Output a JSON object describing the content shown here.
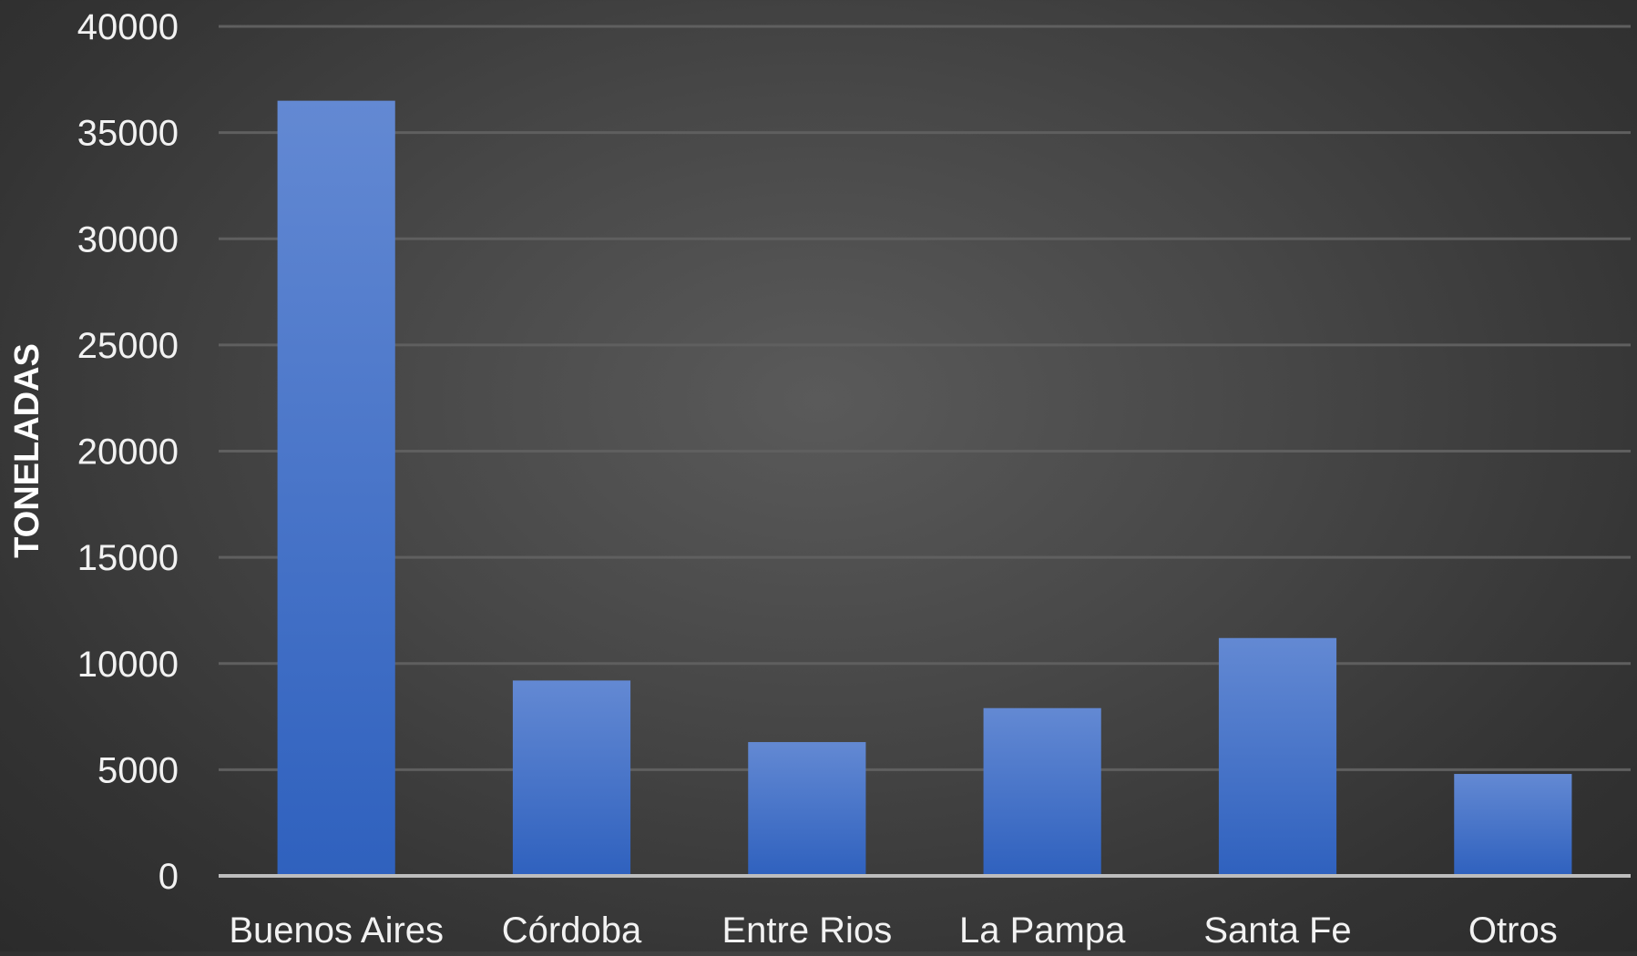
{
  "chart_data": {
    "type": "bar",
    "categories": [
      "Buenos Aires",
      "Córdoba",
      "Entre Rios",
      "La Pampa",
      "Santa Fe",
      "Otros"
    ],
    "values": [
      36500,
      9200,
      6300,
      7900,
      11200,
      4800
    ],
    "title": "",
    "xlabel": "",
    "ylabel": "TONELADAS",
    "ylim": [
      0,
      40000
    ],
    "yticks": [
      0,
      5000,
      10000,
      15000,
      20000,
      25000,
      30000,
      35000,
      40000
    ],
    "grid": true,
    "legend": "none",
    "bar_color_top": "#6389d3",
    "bar_color_bottom": "#2f61be",
    "gridline_color": "#5f5f5f",
    "baseline_color": "#bdbdbd",
    "label_color": "#f2f2f2"
  }
}
